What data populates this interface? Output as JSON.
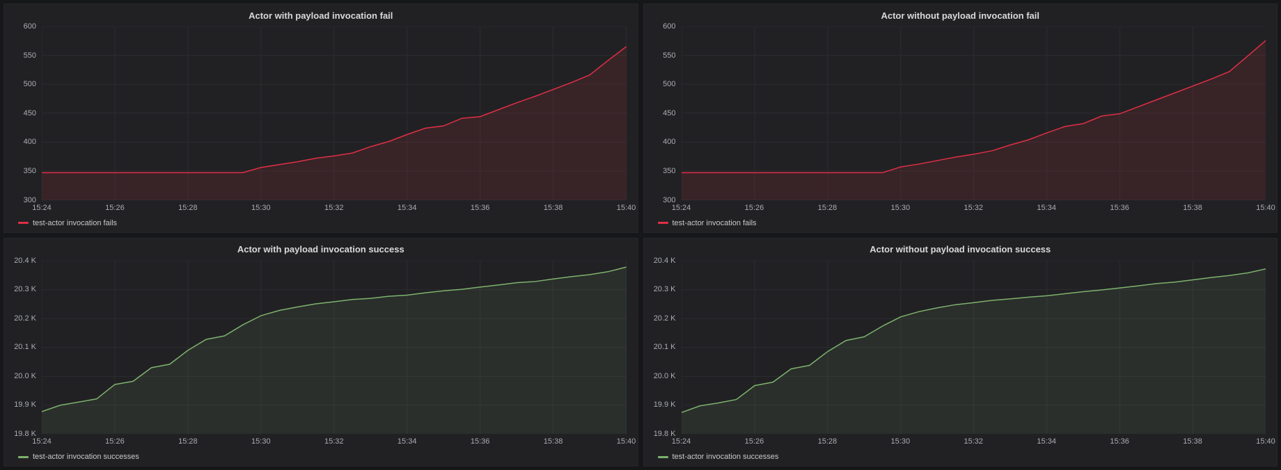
{
  "colors": {
    "page_background": "#161719",
    "panel_background": "#212124",
    "grid_line": "#2c2d31",
    "axis_text": "#aaadb2",
    "title_text": "#d8d9da",
    "fail_series_red": "#e02f44",
    "success_series_green": "#7eb26d"
  },
  "chart_data": [
    {
      "type": "line",
      "area": true,
      "title": "Actor with payload invocation fail",
      "xlabel": "",
      "ylabel": "",
      "x_start": "15:24",
      "x_end": "15:40",
      "x_step_seconds": 30,
      "x_tick_labels": [
        "15:24",
        "15:26",
        "15:28",
        "15:30",
        "15:32",
        "15:34",
        "15:36",
        "15:38",
        "15:40"
      ],
      "ylim": [
        300,
        600
      ],
      "y_ticks": [
        300,
        350,
        400,
        450,
        500,
        550,
        600
      ],
      "y_tick_labels": [
        "300",
        "350",
        "400",
        "450",
        "500",
        "550",
        "600"
      ],
      "grid": true,
      "legend_position": "bottom-left",
      "series": [
        {
          "name": "test-actor invocation fails",
          "color": "#e02f44",
          "fill_opacity": 0.12,
          "values": [
            347,
            347,
            347,
            347,
            347,
            347,
            347,
            347,
            347,
            347,
            347,
            347,
            356,
            361,
            366,
            372,
            376,
            381,
            392,
            401,
            413,
            424,
            428,
            441,
            444,
            456,
            468,
            479,
            491,
            503,
            516,
            541,
            565
          ]
        }
      ]
    },
    {
      "type": "line",
      "area": true,
      "title": "Actor without payload invocation fail",
      "xlabel": "",
      "ylabel": "",
      "x_start": "15:24",
      "x_end": "15:40",
      "x_step_seconds": 30,
      "x_tick_labels": [
        "15:24",
        "15:26",
        "15:28",
        "15:30",
        "15:32",
        "15:34",
        "15:36",
        "15:38",
        "15:40"
      ],
      "ylim": [
        300,
        600
      ],
      "y_ticks": [
        300,
        350,
        400,
        450,
        500,
        550,
        600
      ],
      "y_tick_labels": [
        "300",
        "350",
        "400",
        "450",
        "500",
        "550",
        "600"
      ],
      "grid": true,
      "legend_position": "bottom-left",
      "series": [
        {
          "name": "test-actor invocation fails",
          "color": "#e02f44",
          "fill_opacity": 0.12,
          "values": [
            347,
            347,
            347,
            347,
            347,
            347,
            347,
            347,
            347,
            347,
            347,
            347,
            357,
            362,
            368,
            374,
            379,
            385,
            395,
            404,
            416,
            427,
            432,
            445,
            449,
            461,
            473,
            485,
            497,
            509,
            522,
            549,
            576
          ]
        }
      ]
    },
    {
      "type": "line",
      "area": true,
      "title": "Actor with payload invocation success",
      "xlabel": "",
      "ylabel": "",
      "x_start": "15:24",
      "x_end": "15:40",
      "x_step_seconds": 30,
      "x_tick_labels": [
        "15:24",
        "15:26",
        "15:28",
        "15:30",
        "15:32",
        "15:34",
        "15:36",
        "15:38",
        "15:40"
      ],
      "ylim": [
        19800,
        20400
      ],
      "y_ticks": [
        19800,
        19900,
        20000,
        20100,
        20200,
        20300,
        20400
      ],
      "y_tick_labels": [
        "19.8 K",
        "19.9 K",
        "20.0 K",
        "20.1 K",
        "20.2 K",
        "20.3 K",
        "20.4 K"
      ],
      "grid": true,
      "legend_position": "bottom-left",
      "series": [
        {
          "name": "test-actor invocation successes",
          "color": "#7eb26d",
          "fill_opacity": 0.1,
          "values": [
            19878,
            19900,
            19911,
            19922,
            19972,
            19983,
            20030,
            20042,
            20090,
            20128,
            20140,
            20178,
            20210,
            20228,
            20240,
            20251,
            20258,
            20266,
            20270,
            20277,
            20281,
            20289,
            20296,
            20301,
            20309,
            20316,
            20324,
            20328,
            20337,
            20345,
            20352,
            20362,
            20378
          ]
        }
      ]
    },
    {
      "type": "line",
      "area": true,
      "title": "Actor without payload invocation success",
      "xlabel": "",
      "ylabel": "",
      "x_start": "15:24",
      "x_end": "15:40",
      "x_step_seconds": 30,
      "x_tick_labels": [
        "15:24",
        "15:26",
        "15:28",
        "15:30",
        "15:32",
        "15:34",
        "15:36",
        "15:38",
        "15:40"
      ],
      "ylim": [
        19800,
        20400
      ],
      "y_ticks": [
        19800,
        19900,
        20000,
        20100,
        20200,
        20300,
        20400
      ],
      "y_tick_labels": [
        "19.8 K",
        "19.9 K",
        "20.0 K",
        "20.1 K",
        "20.2 K",
        "20.3 K",
        "20.4 K"
      ],
      "grid": true,
      "legend_position": "bottom-left",
      "series": [
        {
          "name": "test-actor invocation successes",
          "color": "#7eb26d",
          "fill_opacity": 0.1,
          "values": [
            19875,
            19898,
            19908,
            19920,
            19968,
            19980,
            20026,
            20038,
            20086,
            20124,
            20137,
            20174,
            20206,
            20224,
            20237,
            20248,
            20255,
            20263,
            20268,
            20274,
            20279,
            20286,
            20293,
            20299,
            20306,
            20313,
            20321,
            20326,
            20334,
            20342,
            20349,
            20358,
            20372
          ]
        }
      ]
    }
  ]
}
